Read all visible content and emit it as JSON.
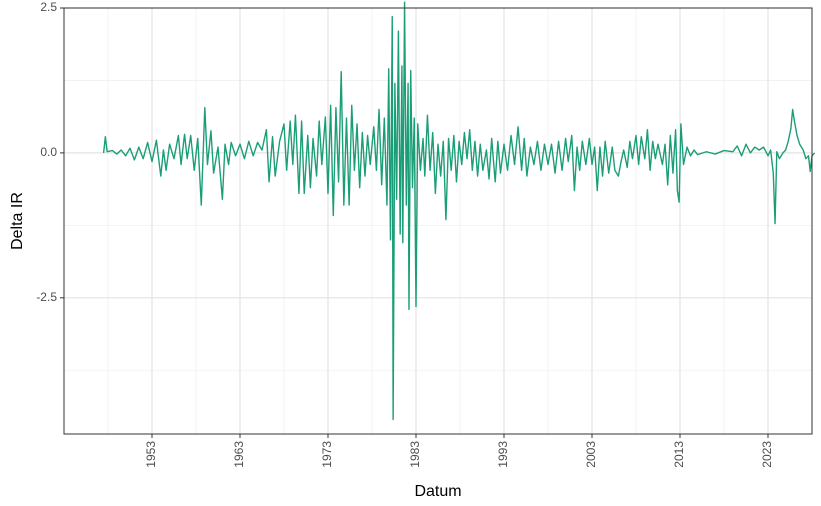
{
  "chart_data": {
    "type": "line",
    "title": "",
    "xlabel": "Datum",
    "ylabel": "Delta IR",
    "xlim": [
      1943.0,
      2028.0
    ],
    "ylim": [
      -4.85,
      2.5
    ],
    "x_ticks": [
      1953,
      1963,
      1973,
      1983,
      1993,
      2003,
      2013,
      2023
    ],
    "x_tick_labels": [
      "1953",
      "1963",
      "1973",
      "1983",
      "1993",
      "2003",
      "2013",
      "2023"
    ],
    "y_ticks": [
      2.5,
      0.0,
      -2.5
    ],
    "y_tick_labels": [
      "2.5",
      "0.0",
      "-2.5"
    ],
    "grid": true,
    "legend": "none",
    "series": [
      {
        "color": "#1b9e77",
        "points": [
          [
            1947.5,
            0.0
          ],
          [
            1947.7,
            0.28
          ],
          [
            1947.9,
            0.02
          ],
          [
            1948.5,
            0.04
          ],
          [
            1949.0,
            -0.02
          ],
          [
            1949.5,
            0.05
          ],
          [
            1950.0,
            -0.05
          ],
          [
            1950.5,
            0.08
          ],
          [
            1951.0,
            -0.12
          ],
          [
            1951.5,
            0.1
          ],
          [
            1952.0,
            -0.1
          ],
          [
            1952.5,
            0.18
          ],
          [
            1953.0,
            -0.15
          ],
          [
            1953.5,
            0.22
          ],
          [
            1954.0,
            -0.4
          ],
          [
            1954.3,
            0.05
          ],
          [
            1954.6,
            -0.3
          ],
          [
            1955.0,
            0.15
          ],
          [
            1955.5,
            -0.1
          ],
          [
            1956.0,
            0.3
          ],
          [
            1956.3,
            -0.2
          ],
          [
            1956.7,
            0.32
          ],
          [
            1957.0,
            -0.1
          ],
          [
            1957.4,
            0.3
          ],
          [
            1957.8,
            -0.3
          ],
          [
            1958.2,
            0.25
          ],
          [
            1958.6,
            -0.9
          ],
          [
            1959.0,
            0.78
          ],
          [
            1959.3,
            -0.2
          ],
          [
            1959.7,
            0.38
          ],
          [
            1960.0,
            -0.35
          ],
          [
            1960.5,
            0.1
          ],
          [
            1961.0,
            -0.8
          ],
          [
            1961.3,
            0.15
          ],
          [
            1961.7,
            -0.2
          ],
          [
            1962.0,
            0.18
          ],
          [
            1962.5,
            -0.05
          ],
          [
            1963.0,
            0.15
          ],
          [
            1963.5,
            -0.1
          ],
          [
            1964.0,
            0.2
          ],
          [
            1964.5,
            -0.05
          ],
          [
            1965.0,
            0.18
          ],
          [
            1965.5,
            0.05
          ],
          [
            1966.0,
            0.4
          ],
          [
            1966.3,
            -0.5
          ],
          [
            1966.7,
            0.28
          ],
          [
            1967.0,
            -0.4
          ],
          [
            1967.5,
            0.2
          ],
          [
            1968.0,
            0.5
          ],
          [
            1968.3,
            -0.3
          ],
          [
            1968.7,
            0.55
          ],
          [
            1969.0,
            -0.2
          ],
          [
            1969.3,
            0.65
          ],
          [
            1969.7,
            -0.7
          ],
          [
            1970.0,
            0.55
          ],
          [
            1970.3,
            -0.7
          ],
          [
            1970.7,
            0.3
          ],
          [
            1971.0,
            -0.6
          ],
          [
            1971.3,
            0.25
          ],
          [
            1971.7,
            -0.4
          ],
          [
            1972.0,
            0.55
          ],
          [
            1972.3,
            -0.2
          ],
          [
            1972.7,
            0.62
          ],
          [
            1973.0,
            -0.7
          ],
          [
            1973.3,
            0.82
          ],
          [
            1973.6,
            -1.08
          ],
          [
            1973.9,
            0.78
          ],
          [
            1974.2,
            -0.5
          ],
          [
            1974.5,
            1.4
          ],
          [
            1974.8,
            -0.9
          ],
          [
            1975.1,
            0.6
          ],
          [
            1975.4,
            -0.9
          ],
          [
            1975.7,
            0.82
          ],
          [
            1976.0,
            -0.3
          ],
          [
            1976.3,
            0.5
          ],
          [
            1976.6,
            -0.6
          ],
          [
            1976.9,
            0.35
          ],
          [
            1977.2,
            -0.4
          ],
          [
            1977.5,
            0.3
          ],
          [
            1977.8,
            -0.2
          ],
          [
            1978.2,
            0.45
          ],
          [
            1978.5,
            -0.3
          ],
          [
            1978.8,
            0.75
          ],
          [
            1979.1,
            -0.55
          ],
          [
            1979.4,
            0.6
          ],
          [
            1979.7,
            -0.9
          ],
          [
            1979.9,
            1.45
          ],
          [
            1980.1,
            -1.5
          ],
          [
            1980.3,
            2.35
          ],
          [
            1980.4,
            -4.6
          ],
          [
            1980.6,
            1.2
          ],
          [
            1980.8,
            -0.8
          ],
          [
            1981.0,
            2.1
          ],
          [
            1981.2,
            -1.4
          ],
          [
            1981.4,
            1.5
          ],
          [
            1981.5,
            -1.55
          ],
          [
            1981.7,
            2.6
          ],
          [
            1981.9,
            -0.9
          ],
          [
            1982.1,
            1.2
          ],
          [
            1982.2,
            -2.7
          ],
          [
            1982.4,
            1.42
          ],
          [
            1982.6,
            -0.6
          ],
          [
            1982.8,
            0.6
          ],
          [
            1983.0,
            -2.65
          ],
          [
            1983.2,
            0.5
          ],
          [
            1983.5,
            -0.3
          ],
          [
            1983.8,
            0.25
          ],
          [
            1984.0,
            -0.4
          ],
          [
            1984.3,
            0.65
          ],
          [
            1984.6,
            -0.3
          ],
          [
            1984.9,
            0.35
          ],
          [
            1985.2,
            -0.7
          ],
          [
            1985.5,
            0.15
          ],
          [
            1985.8,
            -0.4
          ],
          [
            1986.1,
            0.2
          ],
          [
            1986.4,
            -1.15
          ],
          [
            1986.7,
            0.25
          ],
          [
            1987.0,
            -0.3
          ],
          [
            1987.3,
            0.3
          ],
          [
            1987.6,
            -0.5
          ],
          [
            1987.9,
            0.2
          ],
          [
            1988.2,
            -0.2
          ],
          [
            1988.5,
            0.35
          ],
          [
            1988.8,
            -0.1
          ],
          [
            1989.1,
            0.4
          ],
          [
            1989.4,
            -0.3
          ],
          [
            1989.7,
            0.2
          ],
          [
            1990.0,
            -0.4
          ],
          [
            1990.3,
            0.15
          ],
          [
            1990.6,
            -0.3
          ],
          [
            1991.0,
            0.05
          ],
          [
            1991.3,
            -0.45
          ],
          [
            1991.6,
            0.25
          ],
          [
            1992.0,
            -0.5
          ],
          [
            1992.3,
            0.2
          ],
          [
            1992.6,
            -0.35
          ],
          [
            1993.0,
            0.15
          ],
          [
            1993.4,
            -0.3
          ],
          [
            1993.8,
            0.3
          ],
          [
            1994.2,
            -0.2
          ],
          [
            1994.6,
            0.45
          ],
          [
            1995.0,
            -0.3
          ],
          [
            1995.3,
            0.25
          ],
          [
            1995.6,
            -0.4
          ],
          [
            1996.0,
            0.1
          ],
          [
            1996.4,
            -0.2
          ],
          [
            1996.8,
            0.2
          ],
          [
            1997.2,
            -0.3
          ],
          [
            1997.6,
            0.15
          ],
          [
            1998.0,
            -0.2
          ],
          [
            1998.4,
            0.15
          ],
          [
            1998.8,
            -0.35
          ],
          [
            1999.2,
            0.2
          ],
          [
            1999.6,
            -0.3
          ],
          [
            2000.0,
            0.25
          ],
          [
            2000.3,
            -0.15
          ],
          [
            2000.7,
            0.3
          ],
          [
            2001.0,
            -0.65
          ],
          [
            2001.3,
            0.1
          ],
          [
            2001.6,
            -0.3
          ],
          [
            2001.9,
            0.2
          ],
          [
            2002.3,
            -0.2
          ],
          [
            2002.7,
            0.25
          ],
          [
            2003.0,
            -0.2
          ],
          [
            2003.3,
            0.1
          ],
          [
            2003.6,
            -0.65
          ],
          [
            2003.9,
            0.1
          ],
          [
            2004.2,
            -0.4
          ],
          [
            2004.5,
            0.2
          ],
          [
            2004.9,
            -0.35
          ],
          [
            2005.3,
            0.1
          ],
          [
            2005.6,
            -0.3
          ],
          [
            2006.0,
            -0.4
          ],
          [
            2006.3,
            -0.15
          ],
          [
            2006.6,
            0.05
          ],
          [
            2007.0,
            -0.25
          ],
          [
            2007.3,
            0.2
          ],
          [
            2007.6,
            -0.1
          ],
          [
            2008.0,
            0.3
          ],
          [
            2008.3,
            -0.2
          ],
          [
            2008.6,
            0.28
          ],
          [
            2009.0,
            -0.1
          ],
          [
            2009.3,
            0.4
          ],
          [
            2009.6,
            -0.3
          ],
          [
            2009.9,
            0.2
          ],
          [
            2010.2,
            -0.1
          ],
          [
            2010.5,
            0.15
          ],
          [
            2011.0,
            -0.2
          ],
          [
            2011.3,
            0.15
          ],
          [
            2011.6,
            -0.55
          ],
          [
            2011.9,
            0.3
          ],
          [
            2012.2,
            -0.35
          ],
          [
            2012.5,
            0.4
          ],
          [
            2012.7,
            -0.65
          ],
          [
            2012.9,
            -0.85
          ],
          [
            2013.1,
            0.5
          ],
          [
            2013.4,
            -0.2
          ],
          [
            2013.8,
            0.1
          ],
          [
            2014.2,
            -0.05
          ],
          [
            2014.6,
            0.05
          ],
          [
            2015.0,
            -0.03
          ],
          [
            2016.0,
            0.02
          ],
          [
            2017.0,
            -0.02
          ],
          [
            2018.0,
            0.04
          ],
          [
            2019.0,
            0.02
          ],
          [
            2019.5,
            0.12
          ],
          [
            2020.0,
            -0.05
          ],
          [
            2020.5,
            0.15
          ],
          [
            2021.0,
            0.0
          ],
          [
            2021.5,
            0.1
          ],
          [
            2022.0,
            0.05
          ],
          [
            2022.5,
            0.1
          ],
          [
            2023.0,
            -0.05
          ],
          [
            2023.3,
            0.05
          ],
          [
            2023.6,
            -0.35
          ],
          [
            2023.8,
            -1.22
          ],
          [
            2024.0,
            0.02
          ],
          [
            2024.3,
            -0.1
          ],
          [
            2024.7,
            0.0
          ],
          [
            2025.0,
            0.05
          ],
          [
            2025.3,
            0.2
          ],
          [
            2025.6,
            0.42
          ],
          [
            2025.8,
            0.75
          ],
          [
            2026.0,
            0.55
          ],
          [
            2026.3,
            0.3
          ],
          [
            2026.6,
            0.15
          ],
          [
            2027.0,
            0.05
          ],
          [
            2027.3,
            -0.1
          ],
          [
            2027.6,
            -0.05
          ],
          [
            2027.8,
            -0.32
          ],
          [
            2028.0,
            -0.05
          ],
          [
            2028.3,
            0.0
          ]
        ]
      }
    ]
  }
}
